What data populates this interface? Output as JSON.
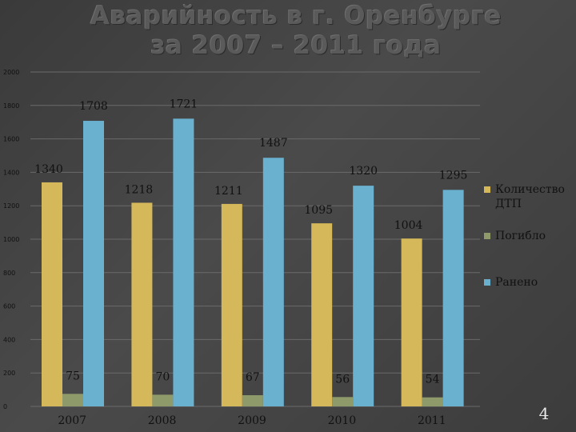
{
  "slide": {
    "title_line1": "Аварийность в г. Оренбурге",
    "title_line2": "за 2007 – 2011 года",
    "page_number": "4"
  },
  "chart_data": {
    "type": "bar",
    "title": "Аварийность в г. Оренбурге за 2007 – 2011 года",
    "categories": [
      "2007",
      "2008",
      "2009",
      "2010",
      "2011"
    ],
    "series": [
      {
        "name": "Количество ДТП",
        "color": "#d4b85a",
        "values": [
          1340,
          1218,
          1211,
          1095,
          1004
        ]
      },
      {
        "name": "Погибло",
        "color": "#8f9a6a",
        "values": [
          75,
          70,
          67,
          56,
          54
        ]
      },
      {
        "name": "Ранено",
        "color": "#6ab0cf",
        "values": [
          1708,
          1721,
          1487,
          1320,
          1295
        ]
      }
    ],
    "yticks": [
      0,
      200,
      400,
      600,
      800,
      1000,
      1200,
      1400,
      1600,
      1800,
      2000
    ],
    "ylim": [
      0,
      2000
    ],
    "grid": true,
    "legend_position": "right"
  }
}
